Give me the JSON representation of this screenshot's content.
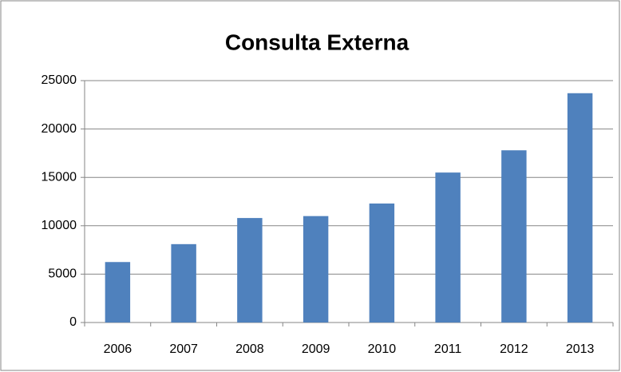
{
  "chart_data": {
    "type": "bar",
    "title": "Consulta Externa",
    "categories": [
      "2006",
      "2007",
      "2008",
      "2009",
      "2010",
      "2011",
      "2012",
      "2013"
    ],
    "values": [
      6250,
      8100,
      10800,
      11000,
      12300,
      15500,
      17800,
      23700
    ],
    "color": "#4f81bd",
    "ylim": [
      0,
      25000
    ],
    "yticks": [
      0,
      5000,
      10000,
      15000,
      20000,
      25000
    ],
    "grid": true
  }
}
